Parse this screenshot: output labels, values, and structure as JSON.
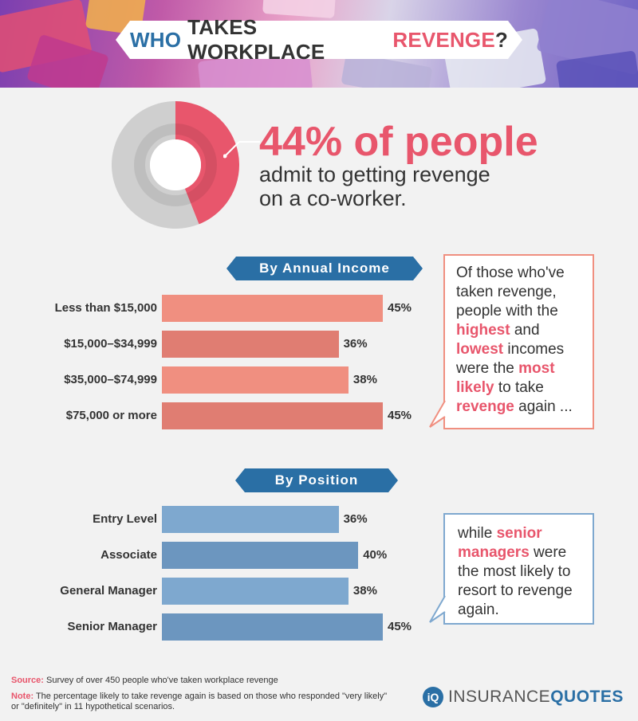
{
  "title": {
    "part1": "WHO",
    "part2": "TAKES WORKPLACE",
    "part3": "REVENGE",
    "part4": "?"
  },
  "headline": {
    "stat": "44% of people",
    "line1": "admit to getting revenge",
    "line2": "on a co-worker."
  },
  "colors": {
    "pink": "#e8566c",
    "blue": "#2a6fa5",
    "salmon_bar": "#f08f80",
    "salmon_bar_alt": "#e07d72",
    "blue_bar": "#7ea8cf",
    "blue_bar_alt": "#6c96bf",
    "donut_grey": "#cfcfcf"
  },
  "income_callout": {
    "t1": "Of those who've taken revenge, people with the ",
    "h1": "highest",
    "t2": " and ",
    "h2": "lowest",
    "t3": " incomes were the ",
    "h3": "most likely",
    "t4": " to take ",
    "h4": "revenge",
    "t5": " again ..."
  },
  "position_callout": {
    "t1": "while ",
    "h1": "senior managers",
    "t2": " were the most likely to resort to revenge again."
  },
  "footnotes": {
    "source_label": "Source:",
    "source_text": " Survey of over 450 people who've taken workplace revenge",
    "note_label": "Note:",
    "note_text": " The percentage likely to take revenge again is based on those who responded \"very likely\" or \"definitely\" in 11 hypothetical scenarios."
  },
  "logo": {
    "part1": "INSURANCE",
    "part2": "QUOTES"
  },
  "chart_data": [
    {
      "type": "pie",
      "categories": [
        "Admit to getting revenge",
        "Other"
      ],
      "values": [
        44,
        56
      ],
      "title": "",
      "value_label": "44%"
    },
    {
      "type": "bar",
      "title": "By Annual Income",
      "categories": [
        "Less than $15,000",
        "$15,000–$34,999",
        "$35,000–$74,999",
        "$75,000 or more"
      ],
      "values": [
        45,
        36,
        38,
        45
      ],
      "value_labels": [
        "45%",
        "36%",
        "38%",
        "45%"
      ],
      "xlabel": "",
      "ylabel": "",
      "xlim": [
        0,
        45
      ]
    },
    {
      "type": "bar",
      "title": "By Position",
      "categories": [
        "Entry Level",
        "Associate",
        "General Manager",
        "Senior Manager"
      ],
      "values": [
        36,
        40,
        38,
        45
      ],
      "value_labels": [
        "36%",
        "40%",
        "38%",
        "45%"
      ],
      "xlabel": "",
      "ylabel": "",
      "xlim": [
        0,
        45
      ]
    }
  ]
}
